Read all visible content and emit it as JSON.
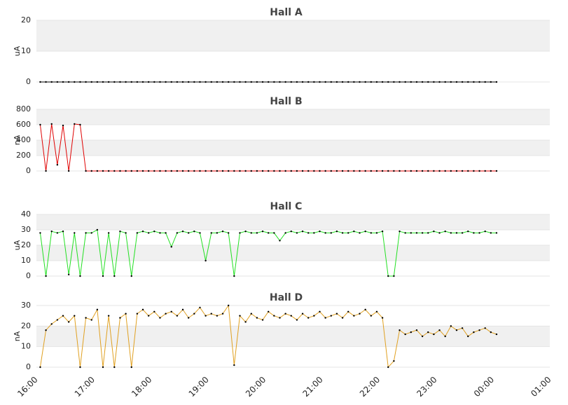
{
  "chart_data": [
    {
      "type": "line",
      "title": "Hall A",
      "y_label": "uA",
      "color": "#000000",
      "marker_color": "#000000",
      "grid": "alternate-bands",
      "xlim": [
        "16:00",
        "01:00"
      ],
      "ylim": [
        0,
        20
      ],
      "yticks": [
        0,
        10,
        20
      ],
      "x": [
        "16:04",
        "16:10",
        "16:16",
        "16:22",
        "16:28",
        "16:34",
        "16:40",
        "16:46",
        "16:52",
        "16:58",
        "17:04",
        "17:10",
        "17:16",
        "17:22",
        "17:28",
        "17:34",
        "17:40",
        "17:46",
        "17:52",
        "17:58",
        "18:04",
        "18:10",
        "18:16",
        "18:22",
        "18:28",
        "18:34",
        "18:40",
        "18:46",
        "18:52",
        "18:58",
        "19:04",
        "19:10",
        "19:16",
        "19:22",
        "19:28",
        "19:34",
        "19:40",
        "19:46",
        "19:52",
        "19:58",
        "20:04",
        "20:10",
        "20:16",
        "20:22",
        "20:28",
        "20:34",
        "20:40",
        "20:46",
        "20:52",
        "20:58",
        "21:04",
        "21:10",
        "21:16",
        "21:22",
        "21:28",
        "21:34",
        "21:40",
        "21:46",
        "21:52",
        "21:58",
        "22:04",
        "22:10",
        "22:16",
        "22:22",
        "22:28",
        "22:34",
        "22:40",
        "22:46",
        "22:52",
        "22:58",
        "23:04",
        "23:10",
        "23:16",
        "23:22",
        "23:28",
        "23:34",
        "23:40",
        "23:46",
        "23:52",
        "23:58",
        "00:04"
      ],
      "values": [
        0,
        0,
        0,
        0,
        0,
        0,
        0,
        0,
        0,
        0,
        0,
        0,
        0,
        0,
        0,
        0,
        0,
        0,
        0,
        0,
        0,
        0,
        0,
        0,
        0,
        0,
        0,
        0,
        0,
        0,
        0,
        0,
        0,
        0,
        0,
        0,
        0,
        0,
        0,
        0,
        0,
        0,
        0,
        0,
        0,
        0,
        0,
        0,
        0,
        0,
        0,
        0,
        0,
        0,
        0,
        0,
        0,
        0,
        0,
        0,
        0,
        0,
        0,
        0,
        0,
        0,
        0,
        0,
        0,
        0,
        0,
        0,
        0,
        0,
        0,
        0,
        0,
        0,
        0,
        0,
        0
      ]
    },
    {
      "type": "line",
      "title": "Hall B",
      "y_label": "nA",
      "color": "#e00000",
      "marker_color": "#000000",
      "grid": "alternate-bands",
      "xlim": [
        "16:00",
        "01:00"
      ],
      "ylim": [
        0,
        800
      ],
      "yticks": [
        0,
        200,
        400,
        600,
        800
      ],
      "x": [
        "16:04",
        "16:10",
        "16:16",
        "16:22",
        "16:28",
        "16:34",
        "16:40",
        "16:46",
        "16:52",
        "16:58",
        "17:04",
        "17:10",
        "17:16",
        "17:22",
        "17:28",
        "17:34",
        "17:40",
        "17:46",
        "17:52",
        "17:58",
        "18:04",
        "18:10",
        "18:16",
        "18:22",
        "18:28",
        "18:34",
        "18:40",
        "18:46",
        "18:52",
        "18:58",
        "19:04",
        "19:10",
        "19:16",
        "19:22",
        "19:28",
        "19:34",
        "19:40",
        "19:46",
        "19:52",
        "19:58",
        "20:04",
        "20:10",
        "20:16",
        "20:22",
        "20:28",
        "20:34",
        "20:40",
        "20:46",
        "20:52",
        "20:58",
        "21:04",
        "21:10",
        "21:16",
        "21:22",
        "21:28",
        "21:34",
        "21:40",
        "21:46",
        "21:52",
        "21:58",
        "22:04",
        "22:10",
        "22:16",
        "22:22",
        "22:28",
        "22:34",
        "22:40",
        "22:46",
        "22:52",
        "22:58",
        "23:04",
        "23:10",
        "23:16",
        "23:22",
        "23:28",
        "23:34",
        "23:40",
        "23:46",
        "23:52",
        "23:58",
        "00:04"
      ],
      "values": [
        600,
        0,
        610,
        80,
        590,
        0,
        610,
        600,
        0,
        0,
        0,
        0,
        0,
        0,
        0,
        0,
        0,
        0,
        0,
        0,
        0,
        0,
        0,
        0,
        0,
        0,
        0,
        0,
        0,
        0,
        0,
        0,
        0,
        0,
        0,
        0,
        0,
        0,
        0,
        0,
        0,
        0,
        0,
        0,
        0,
        0,
        0,
        0,
        0,
        0,
        0,
        0,
        0,
        0,
        0,
        0,
        0,
        0,
        0,
        0,
        0,
        0,
        0,
        0,
        0,
        0,
        0,
        0,
        0,
        0,
        0,
        0,
        0,
        0,
        0,
        0,
        0,
        0,
        0,
        0,
        0
      ]
    },
    {
      "type": "line",
      "title": "Hall C",
      "y_label": "uA",
      "color": "#22e022",
      "marker_color": "#000000",
      "grid": "alternate-bands",
      "xlim": [
        "16:00",
        "01:00"
      ],
      "ylim": [
        0,
        40
      ],
      "yticks": [
        0,
        10,
        20,
        30,
        40
      ],
      "x": [
        "16:04",
        "16:10",
        "16:16",
        "16:22",
        "16:28",
        "16:34",
        "16:40",
        "16:46",
        "16:52",
        "16:58",
        "17:04",
        "17:10",
        "17:16",
        "17:22",
        "17:28",
        "17:34",
        "17:40",
        "17:46",
        "17:52",
        "17:58",
        "18:04",
        "18:10",
        "18:16",
        "18:22",
        "18:28",
        "18:34",
        "18:40",
        "18:46",
        "18:52",
        "18:58",
        "19:04",
        "19:10",
        "19:16",
        "19:22",
        "19:28",
        "19:34",
        "19:40",
        "19:46",
        "19:52",
        "19:58",
        "20:04",
        "20:10",
        "20:16",
        "20:22",
        "20:28",
        "20:34",
        "20:40",
        "20:46",
        "20:52",
        "20:58",
        "21:04",
        "21:10",
        "21:16",
        "21:22",
        "21:28",
        "21:34",
        "21:40",
        "21:46",
        "21:52",
        "21:58",
        "22:04",
        "22:10",
        "22:16",
        "22:22",
        "22:28",
        "22:34",
        "22:40",
        "22:46",
        "22:52",
        "22:58",
        "23:04",
        "23:10",
        "23:16",
        "23:22",
        "23:28",
        "23:34",
        "23:40",
        "23:46",
        "23:52",
        "23:58",
        "00:04"
      ],
      "values": [
        28,
        0,
        29,
        28,
        29,
        1,
        28,
        0,
        28,
        28,
        30,
        0,
        28,
        0,
        29,
        28,
        0,
        28,
        29,
        28,
        29,
        28,
        28,
        19,
        28,
        29,
        28,
        29,
        28,
        10,
        28,
        28,
        29,
        28,
        0,
        28,
        29,
        28,
        28,
        29,
        28,
        28,
        23,
        28,
        29,
        28,
        29,
        28,
        28,
        29,
        28,
        28,
        29,
        28,
        28,
        29,
        28,
        29,
        28,
        28,
        29,
        0,
        0,
        29,
        28,
        28,
        28,
        28,
        28,
        29,
        28,
        29,
        28,
        28,
        28,
        29,
        28,
        28,
        29,
        28,
        28
      ]
    },
    {
      "type": "line",
      "title": "Hall D",
      "y_label": "nA",
      "color": "#e0a020",
      "marker_color": "#000000",
      "grid": "alternate-bands",
      "xlim": [
        "16:00",
        "01:00"
      ],
      "ylim": [
        0,
        30
      ],
      "yticks": [
        0,
        10,
        20,
        30
      ],
      "xticks": [
        "16:00",
        "17:00",
        "18:00",
        "19:00",
        "20:00",
        "21:00",
        "22:00",
        "23:00",
        "00:00",
        "01:00"
      ],
      "x": [
        "16:04",
        "16:10",
        "16:16",
        "16:22",
        "16:28",
        "16:34",
        "16:40",
        "16:46",
        "16:52",
        "16:58",
        "17:04",
        "17:10",
        "17:16",
        "17:22",
        "17:28",
        "17:34",
        "17:40",
        "17:46",
        "17:52",
        "17:58",
        "18:04",
        "18:10",
        "18:16",
        "18:22",
        "18:28",
        "18:34",
        "18:40",
        "18:46",
        "18:52",
        "18:58",
        "19:04",
        "19:10",
        "19:16",
        "19:22",
        "19:28",
        "19:34",
        "19:40",
        "19:46",
        "19:52",
        "19:58",
        "20:04",
        "20:10",
        "20:16",
        "20:22",
        "20:28",
        "20:34",
        "20:40",
        "20:46",
        "20:52",
        "20:58",
        "21:04",
        "21:10",
        "21:16",
        "21:22",
        "21:28",
        "21:34",
        "21:40",
        "21:46",
        "21:52",
        "21:58",
        "22:04",
        "22:10",
        "22:16",
        "22:22",
        "22:28",
        "22:34",
        "22:40",
        "22:46",
        "22:52",
        "22:58",
        "23:04",
        "23:10",
        "23:16",
        "23:22",
        "23:28",
        "23:34",
        "23:40",
        "23:46",
        "23:52",
        "23:58",
        "00:04"
      ],
      "values": [
        0,
        18,
        21,
        23,
        25,
        22,
        25,
        0,
        24,
        23,
        28,
        0,
        25,
        0,
        24,
        26,
        0,
        26,
        28,
        25,
        27,
        24,
        26,
        27,
        25,
        28,
        24,
        26,
        29,
        25,
        26,
        25,
        26,
        30,
        1,
        25,
        22,
        26,
        24,
        23,
        27,
        25,
        24,
        26,
        25,
        23,
        26,
        24,
        25,
        27,
        24,
        25,
        26,
        24,
        27,
        25,
        26,
        28,
        25,
        27,
        24,
        0,
        3,
        18,
        16,
        17,
        18,
        15,
        17,
        16,
        18,
        15,
        20,
        18,
        19,
        15,
        17,
        18,
        19,
        17,
        16
      ]
    }
  ]
}
